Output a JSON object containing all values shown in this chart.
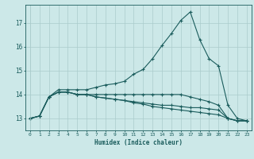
{
  "title": "",
  "xlabel": "Humidex (Indice chaleur)",
  "ylabel": "",
  "bg_color": "#cce8e8",
  "grid_color": "#aacccc",
  "line_color": "#1a5c5c",
  "xlim": [
    -0.5,
    23.5
  ],
  "ylim": [
    12.5,
    17.75
  ],
  "yticks": [
    13,
    14,
    15,
    16,
    17
  ],
  "xticks": [
    0,
    1,
    2,
    3,
    4,
    5,
    6,
    7,
    8,
    9,
    10,
    11,
    12,
    13,
    14,
    15,
    16,
    17,
    18,
    19,
    20,
    21,
    22,
    23
  ],
  "series": [
    [
      13.0,
      13.1,
      13.9,
      14.2,
      14.2,
      14.2,
      14.2,
      14.3,
      14.4,
      14.45,
      14.55,
      14.85,
      15.05,
      15.5,
      16.05,
      16.55,
      17.1,
      17.45,
      16.3,
      15.5,
      15.2,
      13.55,
      13.0,
      12.9
    ],
    [
      13.0,
      13.1,
      13.9,
      14.1,
      14.1,
      14.0,
      14.0,
      14.0,
      14.0,
      14.0,
      14.0,
      14.0,
      14.0,
      14.0,
      14.0,
      14.0,
      14.0,
      13.9,
      13.8,
      13.7,
      13.55,
      13.0,
      12.9,
      12.9
    ],
    [
      13.0,
      13.1,
      13.9,
      14.1,
      14.1,
      14.0,
      14.0,
      13.9,
      13.85,
      13.8,
      13.75,
      13.7,
      13.65,
      13.6,
      13.55,
      13.55,
      13.5,
      13.45,
      13.45,
      13.4,
      13.35,
      13.0,
      12.9,
      12.9
    ],
    [
      13.0,
      13.1,
      13.9,
      14.1,
      14.1,
      14.0,
      14.0,
      13.9,
      13.85,
      13.8,
      13.75,
      13.65,
      13.6,
      13.5,
      13.45,
      13.4,
      13.35,
      13.3,
      13.25,
      13.2,
      13.15,
      13.0,
      12.9,
      12.9
    ]
  ]
}
